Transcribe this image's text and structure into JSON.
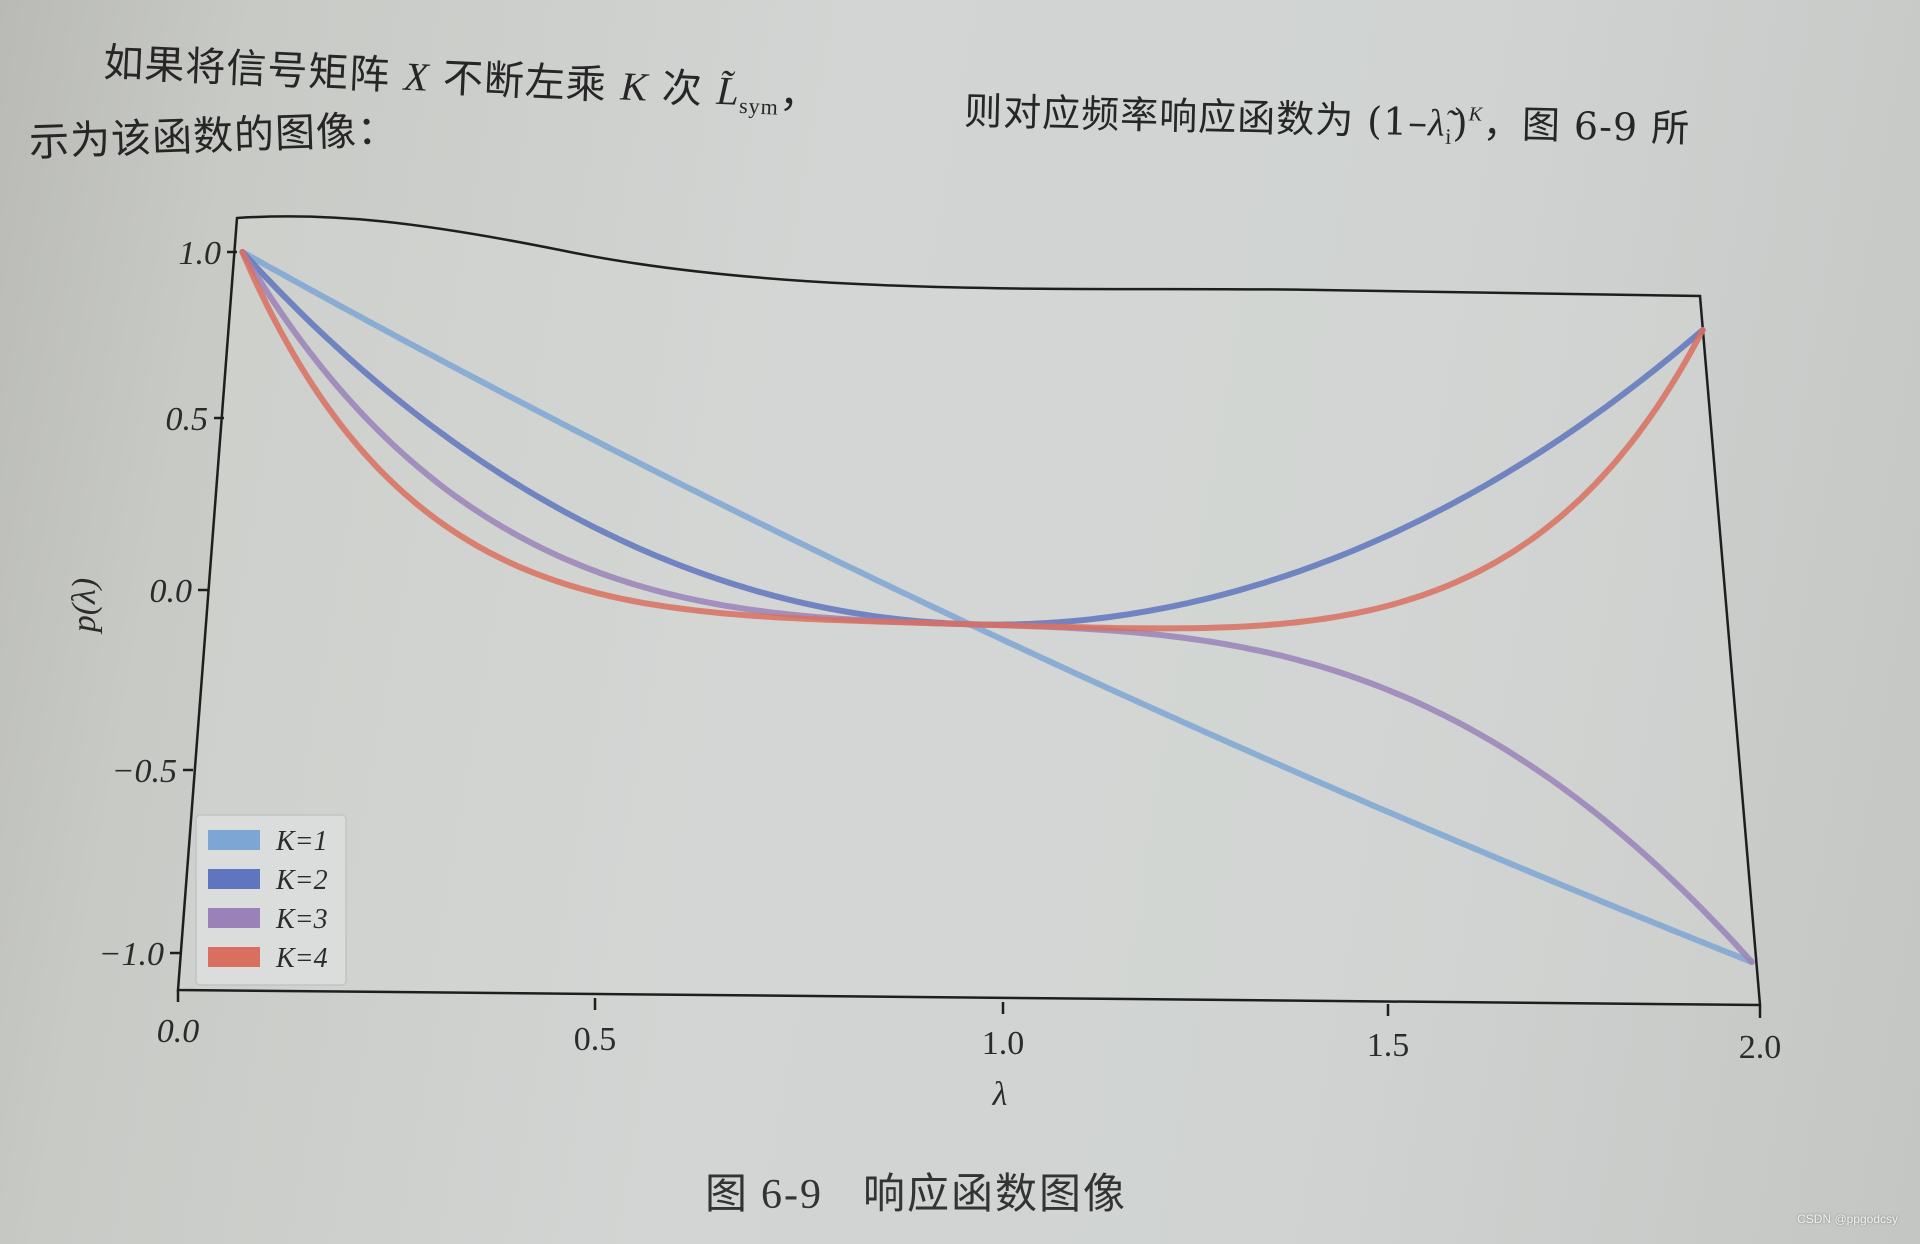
{
  "body_text": {
    "line1_prefix": "如果将信号矩阵 ",
    "line1_X": "X",
    "line1_mid": " 不断左乘 ",
    "line1_K": "K",
    "line1_ci": " 次 ",
    "line1_L": "L̃",
    "line1_sub": "sym",
    "line1_comma": "，",
    "line1b_prefix": "则对应频率响应函数为 (1–",
    "line1b_lambda": "λ̃",
    "line1b_i": "i",
    "line1b_close": ")",
    "line1b_sup": "K",
    "line1b_suffix": "，图 6-9 所",
    "line2": "示为该函数的图像："
  },
  "figure": {
    "caption_prefix": "图",
    "caption_number": "6-9",
    "caption_title": "响应函数图像"
  },
  "chart_data": {
    "type": "line",
    "title": "",
    "xlabel": "λ",
    "ylabel": "p(λ)",
    "xlim": [
      0.0,
      2.0
    ],
    "ylim": [
      -1.1,
      1.1
    ],
    "grid": false,
    "legend_position": "lower left",
    "x_ticks": [
      "0.0",
      "0.5",
      "1.0",
      "1.5",
      "2.0"
    ],
    "y_ticks": [
      "1.0",
      "0.5",
      "0.0",
      "-0.5",
      "-1.0"
    ],
    "x": [
      0.0,
      0.25,
      0.5,
      0.75,
      1.0,
      1.25,
      1.5,
      1.75,
      2.0
    ],
    "series": [
      {
        "name": "K=1",
        "color": "#7ea6d4",
        "values": [
          1.0,
          0.75,
          0.5,
          0.25,
          0.0,
          -0.25,
          -0.5,
          -0.75,
          -1.0
        ]
      },
      {
        "name": "K=2",
        "color": "#5f75bd",
        "values": [
          1.0,
          0.5625,
          0.25,
          0.0625,
          0.0,
          0.0625,
          0.25,
          0.5625,
          1.0
        ]
      },
      {
        "name": "K=3",
        "color": "#9a82b9",
        "values": [
          1.0,
          0.4219,
          0.125,
          0.0156,
          0.0,
          -0.0156,
          -0.125,
          -0.4219,
          -1.0
        ]
      },
      {
        "name": "K=4",
        "color": "#d9705f",
        "values": [
          1.0,
          0.3164,
          0.0625,
          0.0039,
          0.0,
          0.0039,
          0.0625,
          0.3164,
          1.0
        ]
      }
    ],
    "function": "(1-λ)^K"
  },
  "watermark": "CSDN @ppgodcsy"
}
